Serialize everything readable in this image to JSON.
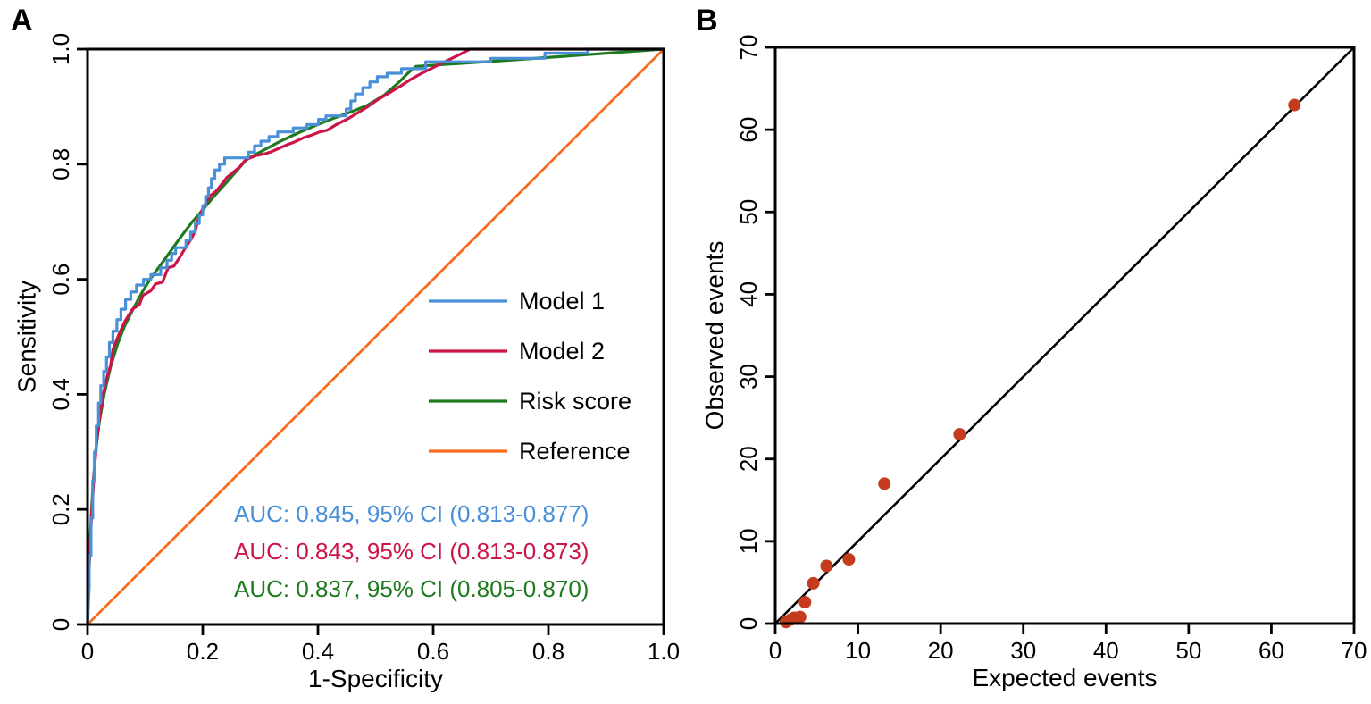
{
  "figure": {
    "background": "#ffffff",
    "axis_color": "#000000"
  },
  "chart_data": [
    {
      "type": "line",
      "panel_label": "A",
      "title": "",
      "xlabel": "1-Specificity",
      "ylabel": "Sensitivity",
      "xlim": [
        0,
        1
      ],
      "ylim": [
        0,
        1
      ],
      "xticks": [
        0,
        0.2,
        0.4,
        0.6,
        0.8,
        1.0
      ],
      "xtick_labels": [
        "0",
        "0.2",
        "0.4",
        "0.6",
        "0.8",
        "1.0"
      ],
      "yticks": [
        0,
        0.2,
        0.4,
        0.6,
        0.8,
        1.0
      ],
      "ytick_labels": [
        "0",
        "0.2",
        "0.4",
        "0.6",
        "0.8",
        "1.0"
      ],
      "ytick_label_rotation_deg": -90,
      "grid": false,
      "legend_position": "inside-right-middle",
      "series": [
        {
          "name": "Model 1",
          "color": "#4a90d9",
          "points": [
            [
              0,
              0
            ],
            [
              0.003,
              0.065
            ],
            [
              0.003,
              0.12
            ],
            [
              0.006,
              0.12
            ],
            [
              0.006,
              0.185
            ],
            [
              0.009,
              0.185
            ],
            [
              0.009,
              0.25
            ],
            [
              0.012,
              0.25
            ],
            [
              0.012,
              0.3
            ],
            [
              0.015,
              0.3
            ],
            [
              0.015,
              0.345
            ],
            [
              0.019,
              0.345
            ],
            [
              0.019,
              0.385
            ],
            [
              0.023,
              0.385
            ],
            [
              0.023,
              0.415
            ],
            [
              0.028,
              0.415
            ],
            [
              0.028,
              0.44
            ],
            [
              0.033,
              0.44
            ],
            [
              0.033,
              0.465
            ],
            [
              0.038,
              0.465
            ],
            [
              0.038,
              0.49
            ],
            [
              0.044,
              0.49
            ],
            [
              0.044,
              0.51
            ],
            [
              0.051,
              0.51
            ],
            [
              0.051,
              0.53
            ],
            [
              0.058,
              0.53
            ],
            [
              0.058,
              0.548
            ],
            [
              0.066,
              0.548
            ],
            [
              0.066,
              0.565
            ],
            [
              0.075,
              0.565
            ],
            [
              0.075,
              0.578
            ],
            [
              0.085,
              0.578
            ],
            [
              0.085,
              0.59
            ],
            [
              0.097,
              0.59
            ],
            [
              0.097,
              0.6
            ],
            [
              0.11,
              0.6
            ],
            [
              0.11,
              0.608
            ],
            [
              0.127,
              0.608
            ],
            [
              0.127,
              0.62
            ],
            [
              0.138,
              0.62
            ],
            [
              0.138,
              0.633
            ],
            [
              0.146,
              0.633
            ],
            [
              0.146,
              0.645
            ],
            [
              0.153,
              0.645
            ],
            [
              0.153,
              0.655
            ],
            [
              0.171,
              0.655
            ],
            [
              0.171,
              0.668
            ],
            [
              0.179,
              0.668
            ],
            [
              0.179,
              0.682
            ],
            [
              0.187,
              0.682
            ],
            [
              0.187,
              0.697
            ],
            [
              0.194,
              0.697
            ],
            [
              0.194,
              0.712
            ],
            [
              0.2,
              0.712
            ],
            [
              0.2,
              0.728
            ],
            [
              0.205,
              0.728
            ],
            [
              0.205,
              0.744
            ],
            [
              0.21,
              0.744
            ],
            [
              0.21,
              0.759
            ],
            [
              0.215,
              0.759
            ],
            [
              0.215,
              0.775
            ],
            [
              0.221,
              0.775
            ],
            [
              0.221,
              0.79
            ],
            [
              0.229,
              0.79
            ],
            [
              0.229,
              0.8
            ],
            [
              0.238,
              0.8
            ],
            [
              0.238,
              0.811
            ],
            [
              0.279,
              0.811
            ],
            [
              0.279,
              0.821
            ],
            [
              0.29,
              0.821
            ],
            [
              0.29,
              0.832
            ],
            [
              0.301,
              0.832
            ],
            [
              0.301,
              0.84
            ],
            [
              0.315,
              0.84
            ],
            [
              0.315,
              0.848
            ],
            [
              0.33,
              0.848
            ],
            [
              0.33,
              0.856
            ],
            [
              0.357,
              0.856
            ],
            [
              0.357,
              0.863
            ],
            [
              0.381,
              0.863
            ],
            [
              0.381,
              0.869
            ],
            [
              0.401,
              0.869
            ],
            [
              0.401,
              0.878
            ],
            [
              0.414,
              0.878
            ],
            [
              0.414,
              0.884
            ],
            [
              0.449,
              0.884
            ],
            [
              0.449,
              0.896
            ],
            [
              0.457,
              0.896
            ],
            [
              0.457,
              0.91
            ],
            [
              0.465,
              0.91
            ],
            [
              0.465,
              0.922
            ],
            [
              0.478,
              0.922
            ],
            [
              0.478,
              0.933
            ],
            [
              0.49,
              0.933
            ],
            [
              0.49,
              0.943
            ],
            [
              0.503,
              0.943
            ],
            [
              0.503,
              0.952
            ],
            [
              0.52,
              0.952
            ],
            [
              0.52,
              0.958
            ],
            [
              0.545,
              0.958
            ],
            [
              0.545,
              0.966
            ],
            [
              0.587,
              0.966
            ],
            [
              0.587,
              0.978
            ],
            [
              0.7,
              0.978
            ],
            [
              0.7,
              0.984
            ],
            [
              0.794,
              0.984
            ],
            [
              0.794,
              0.993
            ],
            [
              0.868,
              0.993
            ],
            [
              0.868,
              1
            ],
            [
              1,
              1
            ]
          ]
        },
        {
          "name": "Model 2",
          "color": "#cc1448",
          "points": [
            [
              0,
              0
            ],
            [
              0.003,
              0.1
            ],
            [
              0.007,
              0.19
            ],
            [
              0.012,
              0.27
            ],
            [
              0.018,
              0.34
            ],
            [
              0.026,
              0.395
            ],
            [
              0.035,
              0.435
            ],
            [
              0.04,
              0.45
            ],
            [
              0.044,
              0.478
            ],
            [
              0.054,
              0.503
            ],
            [
              0.065,
              0.527
            ],
            [
              0.078,
              0.548
            ],
            [
              0.09,
              0.556
            ],
            [
              0.096,
              0.572
            ],
            [
              0.11,
              0.58
            ],
            [
              0.118,
              0.592
            ],
            [
              0.13,
              0.595
            ],
            [
              0.14,
              0.62
            ],
            [
              0.15,
              0.623
            ],
            [
              0.16,
              0.638
            ],
            [
              0.17,
              0.655
            ],
            [
              0.18,
              0.67
            ],
            [
              0.187,
              0.684
            ],
            [
              0.192,
              0.703
            ],
            [
              0.199,
              0.721
            ],
            [
              0.206,
              0.734
            ],
            [
              0.214,
              0.746
            ],
            [
              0.223,
              0.753
            ],
            [
              0.232,
              0.764
            ],
            [
              0.242,
              0.777
            ],
            [
              0.254,
              0.787
            ],
            [
              0.264,
              0.795
            ],
            [
              0.273,
              0.806
            ],
            [
              0.28,
              0.81
            ],
            [
              0.293,
              0.815
            ],
            [
              0.308,
              0.818
            ],
            [
              0.32,
              0.822
            ],
            [
              0.333,
              0.828
            ],
            [
              0.347,
              0.834
            ],
            [
              0.36,
              0.839
            ],
            [
              0.375,
              0.846
            ],
            [
              0.39,
              0.851
            ],
            [
              0.403,
              0.856
            ],
            [
              0.416,
              0.859
            ],
            [
              0.432,
              0.869
            ],
            [
              0.45,
              0.878
            ],
            [
              0.467,
              0.888
            ],
            [
              0.485,
              0.899
            ],
            [
              0.502,
              0.911
            ],
            [
              0.522,
              0.923
            ],
            [
              0.542,
              0.935
            ],
            [
              0.562,
              0.948
            ],
            [
              0.582,
              0.959
            ],
            [
              0.602,
              0.969
            ],
            [
              0.622,
              0.979
            ],
            [
              0.645,
              0.99
            ],
            [
              0.664,
              1
            ],
            [
              1,
              1
            ]
          ]
        },
        {
          "name": "Risk score",
          "color": "#1e7a1e",
          "points": [
            [
              0,
              0
            ],
            [
              0.002,
              0.08
            ],
            [
              0.005,
              0.16
            ],
            [
              0.009,
              0.235
            ],
            [
              0.014,
              0.3
            ],
            [
              0.021,
              0.355
            ],
            [
              0.03,
              0.405
            ],
            [
              0.04,
              0.448
            ],
            [
              0.052,
              0.487
            ],
            [
              0.065,
              0.52
            ],
            [
              0.08,
              0.55
            ],
            [
              0.095,
              0.578
            ],
            [
              0.11,
              0.602
            ],
            [
              0.127,
              0.625
            ],
            [
              0.145,
              0.65
            ],
            [
              0.163,
              0.675
            ],
            [
              0.182,
              0.7
            ],
            [
              0.202,
              0.723
            ],
            [
              0.222,
              0.747
            ],
            [
              0.243,
              0.77
            ],
            [
              0.262,
              0.792
            ],
            [
              0.277,
              0.809
            ],
            [
              0.305,
              0.824
            ],
            [
              0.335,
              0.84
            ],
            [
              0.365,
              0.854
            ],
            [
              0.395,
              0.867
            ],
            [
              0.425,
              0.879
            ],
            [
              0.455,
              0.89
            ],
            [
              0.485,
              0.902
            ],
            [
              0.515,
              0.92
            ],
            [
              0.54,
              0.942
            ],
            [
              0.558,
              0.96
            ],
            [
              0.57,
              0.97
            ],
            [
              0.63,
              0.974
            ],
            [
              0.72,
              0.98
            ],
            [
              0.82,
              0.987
            ],
            [
              1,
              1
            ]
          ]
        },
        {
          "name": "Reference",
          "color": "#f96a1e",
          "points": [
            [
              0,
              0
            ],
            [
              1,
              1
            ]
          ]
        }
      ],
      "legend_entries": [
        "Model 1",
        "Model 2",
        "Risk score",
        "Reference"
      ],
      "annotations": [
        {
          "text": "AUC: 0.845, 95% CI (0.813-0.877)",
          "color": "#4a90d9"
        },
        {
          "text": "AUC: 0.843, 95% CI (0.813-0.873)",
          "color": "#cc1448"
        },
        {
          "text": "AUC: 0.837, 95% CI (0.805-0.870)",
          "color": "#1e7a1e"
        }
      ]
    },
    {
      "type": "scatter",
      "panel_label": "B",
      "title": "",
      "xlabel": "Expected events",
      "ylabel": "Observed events",
      "xlim": [
        0,
        70
      ],
      "ylim": [
        0,
        70
      ],
      "xticks": [
        0,
        10,
        20,
        30,
        40,
        50,
        60,
        70
      ],
      "xtick_labels": [
        "0",
        "10",
        "20",
        "30",
        "40",
        "50",
        "60",
        "70"
      ],
      "yticks": [
        0,
        10,
        20,
        30,
        40,
        50,
        60,
        70
      ],
      "ytick_labels": [
        "0",
        "10",
        "20",
        "30",
        "40",
        "50",
        "60",
        "70"
      ],
      "ytick_label_rotation_deg": -90,
      "grid": false,
      "point_color": "#c43b1e",
      "point_radius_px": 7,
      "points": [
        [
          1.3,
          0.2
        ],
        [
          1.9,
          0.5
        ],
        [
          2.3,
          0.7
        ],
        [
          3.0,
          0.8
        ],
        [
          3.6,
          2.6
        ],
        [
          4.6,
          4.9
        ],
        [
          6.2,
          7.0
        ],
        [
          8.9,
          7.8
        ],
        [
          13.2,
          17
        ],
        [
          22.3,
          23
        ],
        [
          62.8,
          63
        ]
      ],
      "identity_line": {
        "from": [
          0,
          0
        ],
        "to": [
          70,
          70
        ],
        "color": "#000000"
      }
    }
  ]
}
